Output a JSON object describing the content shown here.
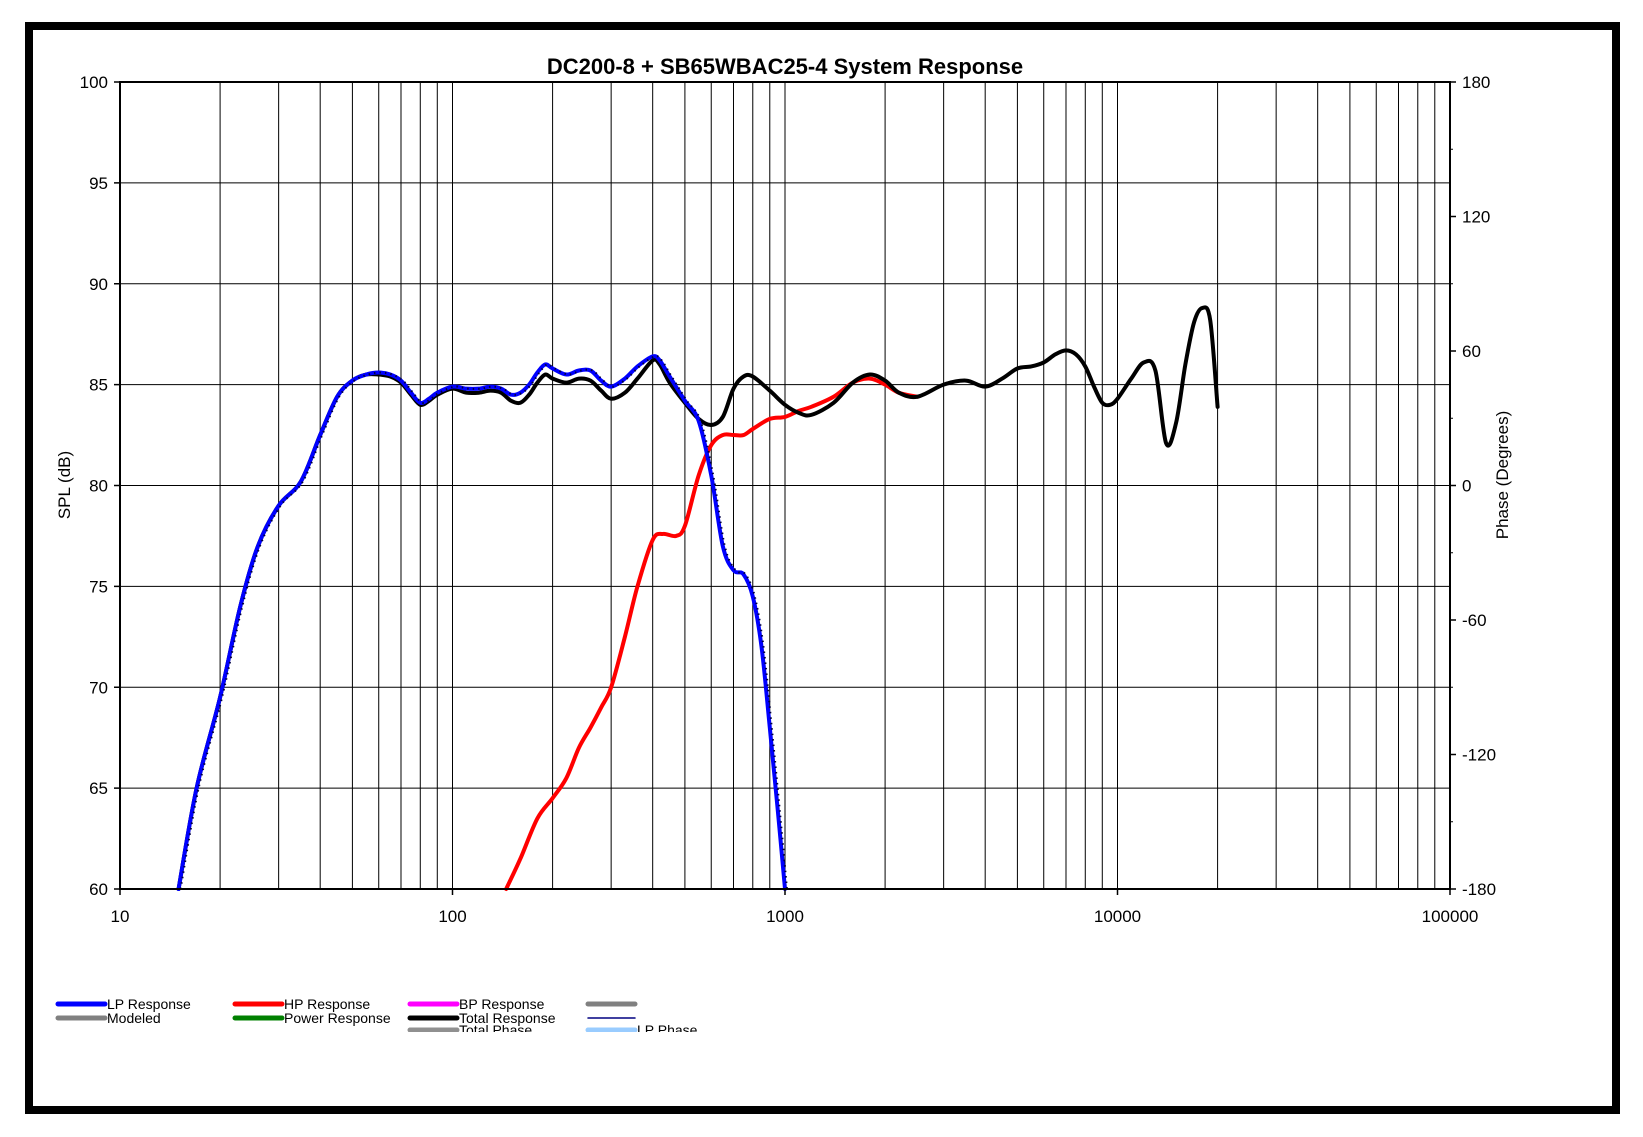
{
  "chart_data": {
    "type": "line",
    "title": "DC200-8 + SB65WBAC25-4    System Response",
    "xscale": "log",
    "xlim": [
      10,
      100000
    ],
    "ylim": [
      60,
      100
    ],
    "y2lim": [
      -180,
      180
    ],
    "ylabel": "SPL (dB)",
    "y2label": "Phase (Degrees)",
    "xticks": [
      "10",
      "100",
      "1000",
      "10000",
      "100000"
    ],
    "yticks": [
      "60",
      "65",
      "70",
      "75",
      "80",
      "85",
      "90",
      "95",
      "100"
    ],
    "y2ticks": [
      "-180",
      "-120",
      "-60",
      "0",
      "60",
      "120",
      "180"
    ],
    "grid": true,
    "legend_position": "bottom",
    "legend": [
      {
        "label": "LP Response",
        "color": "#0000ff"
      },
      {
        "label": "Modeled",
        "color": "#808080"
      },
      {
        "label": "HP Response",
        "color": "#ff0000"
      },
      {
        "label": "Power Response",
        "color": "#008000"
      },
      {
        "label": "BP Response",
        "color": "#ff00ff"
      },
      {
        "label": "Total Response",
        "color": "#000000"
      },
      {
        "label": "Total Phase",
        "color": "#909090"
      },
      {
        "label": "",
        "color": "#808080"
      },
      {
        "label": "",
        "color": "#000080"
      },
      {
        "label": "LP Phase",
        "color": "#99ccff"
      }
    ],
    "series": [
      {
        "name": "LP Response",
        "color": "#0000ff",
        "x": [
          15,
          17,
          20,
          23,
          26,
          30,
          35,
          40,
          45,
          50,
          55,
          60,
          65,
          70,
          75,
          80,
          85,
          90,
          100,
          110,
          120,
          130,
          140,
          150,
          160,
          170,
          180,
          190,
          200,
          220,
          240,
          260,
          280,
          300,
          330,
          360,
          400,
          420,
          450,
          500,
          550,
          600,
          650,
          700,
          750,
          800,
          850,
          900,
          950,
          1000
        ],
        "y": [
          60,
          65,
          69.5,
          74,
          77,
          79,
          80.2,
          82.5,
          84.4,
          85.2,
          85.5,
          85.6,
          85.5,
          85.2,
          84.6,
          84.1,
          84.3,
          84.6,
          84.9,
          84.8,
          84.8,
          84.9,
          84.8,
          84.5,
          84.6,
          85,
          85.6,
          86,
          85.8,
          85.5,
          85.7,
          85.7,
          85.2,
          84.9,
          85.3,
          85.9,
          86.4,
          86.2,
          85.4,
          84.2,
          83.2,
          80.5,
          77,
          75.8,
          75.6,
          74.5,
          72,
          68,
          64,
          60
        ]
      },
      {
        "name": "HP Response",
        "color": "#ff0000",
        "x": [
          145,
          160,
          180,
          200,
          220,
          240,
          260,
          280,
          300,
          330,
          360,
          400,
          430,
          470,
          500,
          550,
          600,
          650,
          700,
          750,
          800,
          900,
          1000,
          1100,
          1200,
          1400,
          1600,
          1800,
          2000,
          2200,
          2500
        ],
        "y": [
          60,
          61.5,
          63.5,
          64.5,
          65.5,
          67,
          68,
          69,
          70,
          72.5,
          75,
          77.3,
          77.6,
          77.5,
          78,
          80.5,
          82,
          82.5,
          82.5,
          82.5,
          82.8,
          83.3,
          83.4,
          83.7,
          83.9,
          84.4,
          85.1,
          85.3,
          85.0,
          84.6,
          84.4
        ]
      },
      {
        "name": "Total Response",
        "color": "#000000",
        "x": [
          15,
          17,
          20,
          23,
          26,
          30,
          35,
          40,
          45,
          50,
          55,
          60,
          65,
          70,
          75,
          80,
          85,
          90,
          100,
          110,
          120,
          130,
          140,
          150,
          160,
          170,
          180,
          190,
          200,
          220,
          240,
          260,
          280,
          300,
          330,
          360,
          400,
          420,
          450,
          500,
          550,
          600,
          650,
          700,
          750,
          800,
          900,
          1000,
          1100,
          1200,
          1400,
          1600,
          1800,
          2000,
          2200,
          2500,
          3000,
          3500,
          4000,
          4500,
          5000,
          5500,
          6000,
          6500,
          7000,
          7500,
          8000,
          8500,
          9000,
          9500,
          10000,
          11000,
          12000,
          13000,
          14000,
          15000,
          16000,
          17000,
          18000,
          19000,
          20000
        ],
        "y": [
          60,
          65,
          69.5,
          74,
          77,
          79,
          80.2,
          82.5,
          84.4,
          85.2,
          85.5,
          85.5,
          85.4,
          85.1,
          84.5,
          84.0,
          84.2,
          84.5,
          84.8,
          84.6,
          84.6,
          84.7,
          84.6,
          84.2,
          84.1,
          84.5,
          85.1,
          85.5,
          85.3,
          85.1,
          85.3,
          85.2,
          84.7,
          84.3,
          84.6,
          85.3,
          86.2,
          86.0,
          85.1,
          84.1,
          83.3,
          83.0,
          83.4,
          84.8,
          85.4,
          85.4,
          84.7,
          84.0,
          83.6,
          83.5,
          84.1,
          85.1,
          85.5,
          85.2,
          84.6,
          84.4,
          85.0,
          85.2,
          84.9,
          85.3,
          85.8,
          85.9,
          86.1,
          86.5,
          86.7,
          86.5,
          85.9,
          84.9,
          84.1,
          84.0,
          84.3,
          85.3,
          86.1,
          85.7,
          82.1,
          83.1,
          86.0,
          88.1,
          88.8,
          88.2,
          83.9
        ]
      }
    ]
  }
}
